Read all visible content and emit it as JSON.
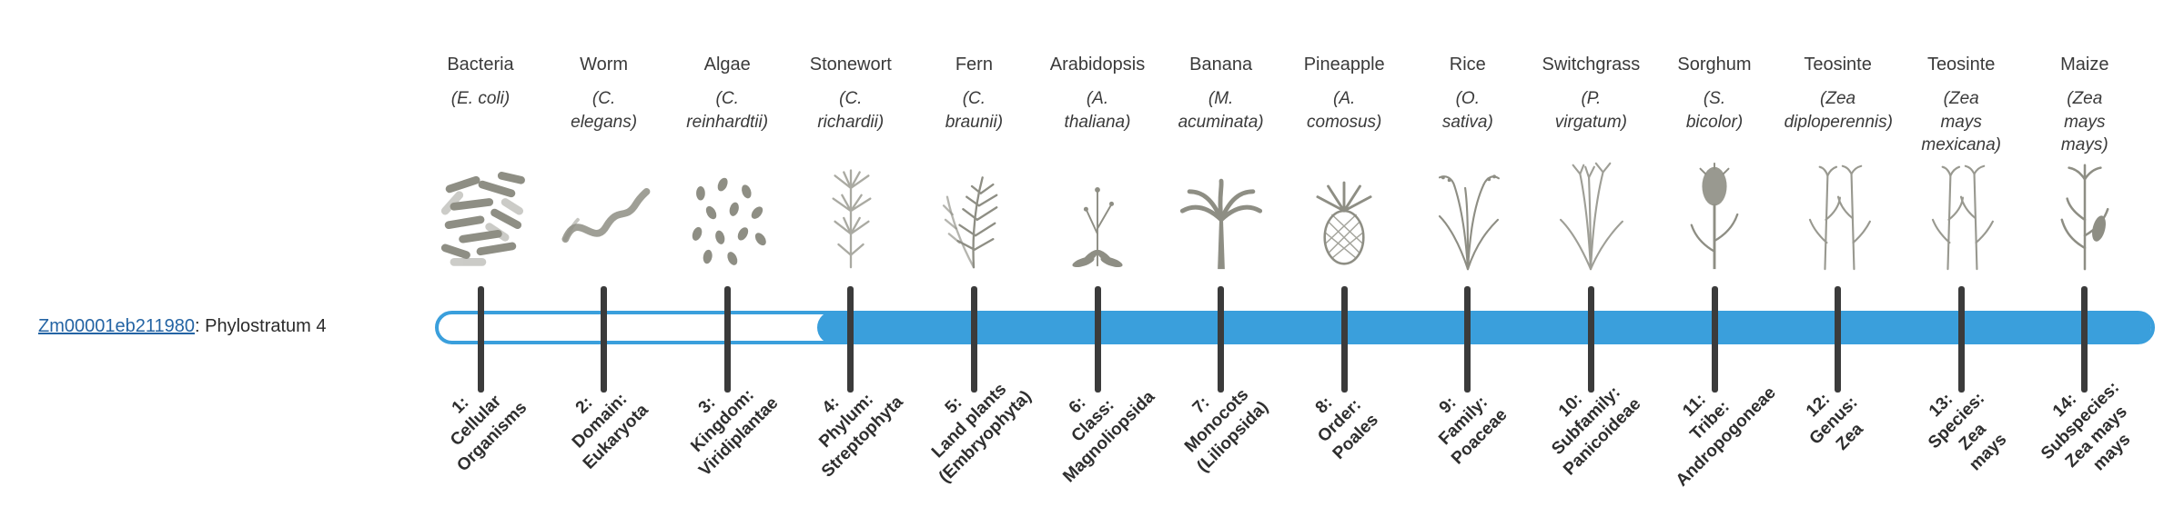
{
  "gene": {
    "id": "Zm00001eb211980",
    "suffix": ": Phylostratum 4",
    "phylostratum": 4
  },
  "colors": {
    "bar": "#3A9FDC",
    "tick": "#3b3b3b",
    "link": "#2464a4",
    "text": "#3c3c3c",
    "illustration": "#8e8e84"
  },
  "bar": {
    "total_strata": 14,
    "filled_from_stratum": 4
  },
  "strata": [
    {
      "common": "Bacteria",
      "scientific": "(E. coli)",
      "icon": "bacteria",
      "rank_label": "1:\nCellular\nOrganisms"
    },
    {
      "common": "Worm",
      "scientific": "(C. elegans)",
      "icon": "worm",
      "rank_label": "2:\nDomain:\nEukaryota"
    },
    {
      "common": "Algae",
      "scientific": "(C. reinhardtii)",
      "icon": "algae",
      "rank_label": "3:\nKingdom:\nViridiplantae"
    },
    {
      "common": "Stonewort",
      "scientific": "(C. richardii)",
      "icon": "stonewort",
      "rank_label": "4:\nPhylum:\nStreptophyta"
    },
    {
      "common": "Fern",
      "scientific": "(C. braunii)",
      "icon": "fern",
      "rank_label": "5:\nLand plants\n(Embryophyta)"
    },
    {
      "common": "Arabidopsis",
      "scientific": "(A. thaliana)",
      "icon": "arabidopsis",
      "rank_label": "6:\nClass:\nMagnoliopsida"
    },
    {
      "common": "Banana",
      "scientific": "(M. acuminata)",
      "icon": "banana",
      "rank_label": "7:\nMonocots\n(Liliopsida)"
    },
    {
      "common": "Pineapple",
      "scientific": "(A. comosus)",
      "icon": "pineapple",
      "rank_label": "8:\nOrder:\nPoales"
    },
    {
      "common": "Rice",
      "scientific": "(O. sativa)",
      "icon": "rice",
      "rank_label": "9:\nFamily:\nPoaceae"
    },
    {
      "common": "Switchgrass",
      "scientific": "(P. virgatum)",
      "icon": "switchgrass",
      "rank_label": "10:\nSubfamily:\nPanicoideae"
    },
    {
      "common": "Sorghum",
      "scientific": "(S. bicolor)",
      "icon": "sorghum",
      "rank_label": "11:\nTribe:\nAndropogoneae"
    },
    {
      "common": "Teosinte",
      "scientific": "(Zea diploperennis)",
      "icon": "teosinte",
      "rank_label": "12:\nGenus:\nZea"
    },
    {
      "common": "Teosinte",
      "scientific": "(Zea mays mexicana)",
      "icon": "teosinte",
      "rank_label": "13:\nSpecies:\nZea\nmays"
    },
    {
      "common": "Maize",
      "scientific": "(Zea mays mays)",
      "icon": "maize",
      "rank_label": "14:\nSubspecies:\nZea mays\nmays"
    }
  ]
}
